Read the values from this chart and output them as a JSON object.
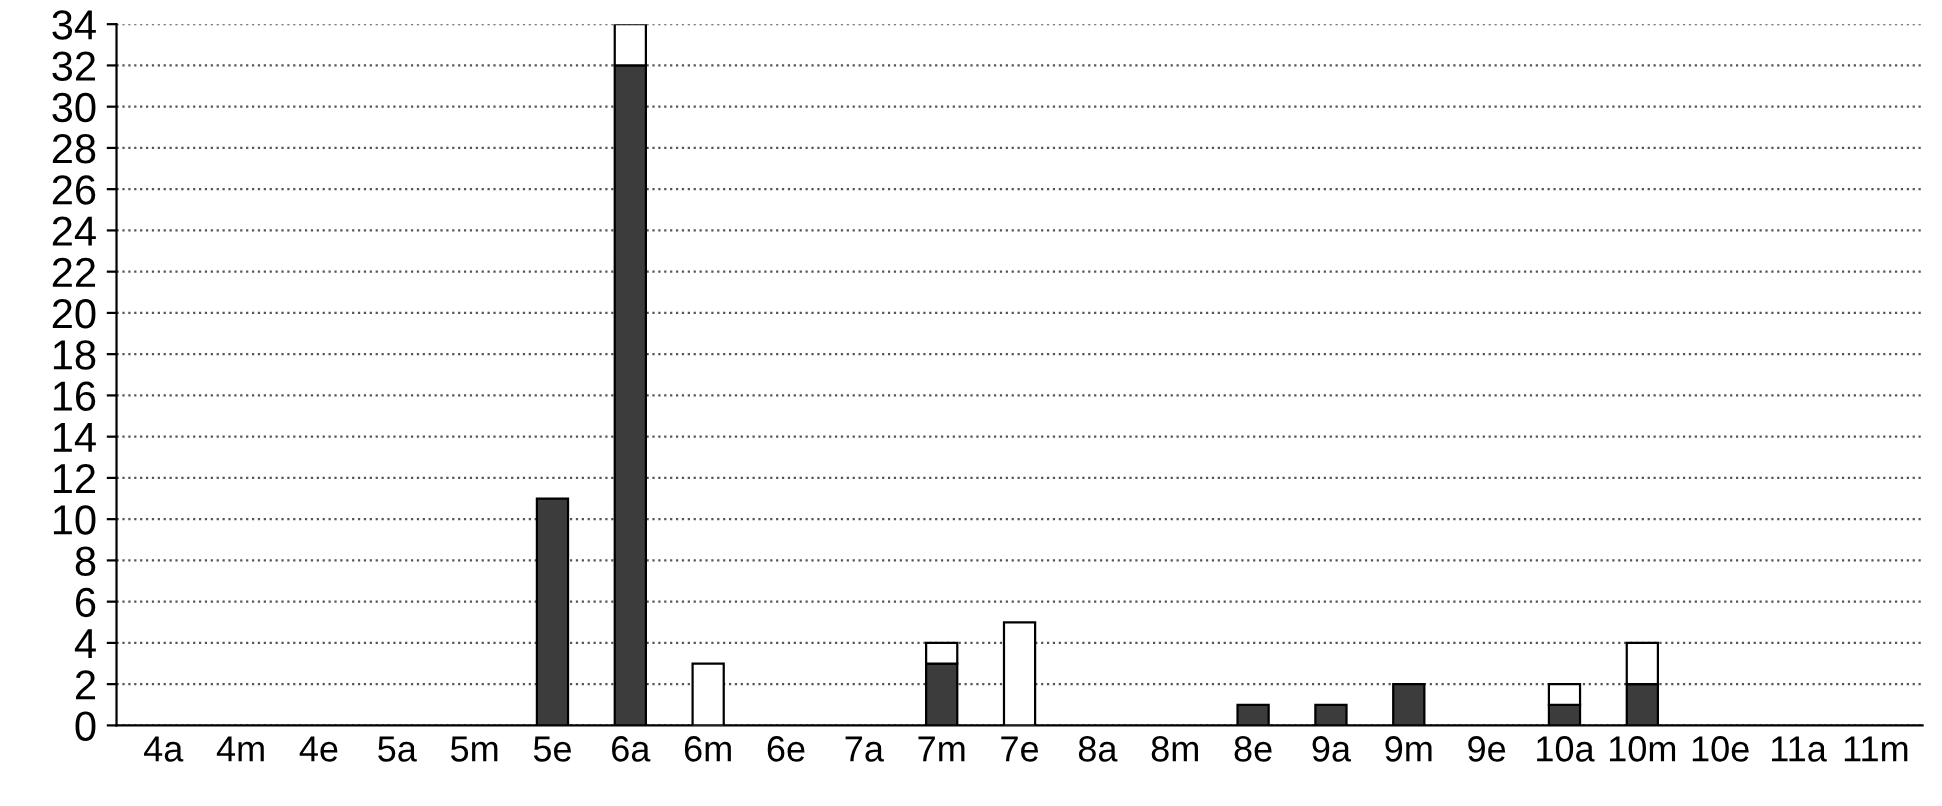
{
  "chart_data": {
    "type": "bar",
    "stacked": true,
    "categories": [
      "4a",
      "4m",
      "4e",
      "5a",
      "5m",
      "5e",
      "6a",
      "6m",
      "6e",
      "7a",
      "7m",
      "7e",
      "8a",
      "8m",
      "8e",
      "9a",
      "9m",
      "9e",
      "10a",
      "10m",
      "10e",
      "11a",
      "11m"
    ],
    "series": [
      {
        "color": "#3c3c3c",
        "values": [
          0,
          0,
          0,
          0,
          0,
          11,
          32,
          0,
          0,
          0,
          3,
          0,
          0,
          0,
          1,
          1,
          2,
          0,
          1,
          2,
          0,
          0,
          0
        ]
      },
      {
        "color": "#ffffff",
        "values": [
          0,
          0,
          0,
          0,
          0,
          0,
          2,
          3,
          0,
          0,
          1,
          5,
          0,
          0,
          0,
          0,
          0,
          0,
          1,
          2,
          0,
          0,
          0
        ]
      }
    ],
    "ylim": [
      0,
      34
    ],
    "yticks": [
      0,
      2,
      4,
      6,
      8,
      10,
      12,
      14,
      16,
      18,
      20,
      22,
      24,
      26,
      28,
      30,
      32,
      34
    ],
    "grid": "y"
  }
}
